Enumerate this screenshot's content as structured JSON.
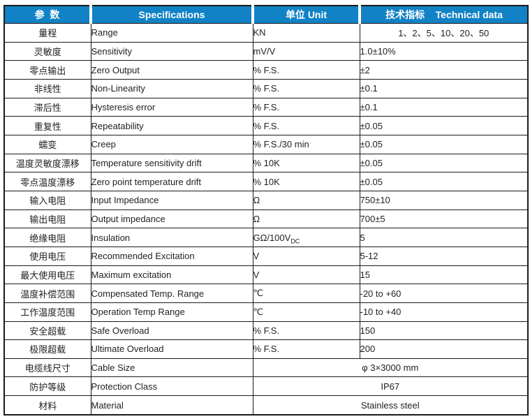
{
  "colors": {
    "header_bg": "#1182C5",
    "header_text": "#FFFFFF",
    "border": "#1A1A1A",
    "body_text": "#1F1F1F"
  },
  "table": {
    "headers": [
      "参  数",
      "Specifications",
      "单位 Unit",
      "技术指标    Technical data"
    ],
    "rows": [
      {
        "param_zh": "量程",
        "spec_en": "Range",
        "unit": "KN",
        "value": "1、2、5、10、20、50",
        "value_align": "center"
      },
      {
        "param_zh": "灵敏度",
        "spec_en": "Sensitivity",
        "unit": "mV/V",
        "value": "1.0±10%"
      },
      {
        "param_zh": "零点输出",
        "spec_en": "Zero Output",
        "unit": "% F.S.",
        "value": "±2"
      },
      {
        "param_zh": "非线性",
        "spec_en": "Non-Linearity",
        "unit": "% F.S.",
        "value": "±0.1"
      },
      {
        "param_zh": "滞后性",
        "spec_en": "Hysteresis error",
        "unit": "% F.S.",
        "value": "±0.1"
      },
      {
        "param_zh": "重复性",
        "spec_en": "Repeatability",
        "unit": "% F.S.",
        "value": "±0.05"
      },
      {
        "param_zh": "蠕变",
        "spec_en": "Creep",
        "unit": "% F.S./30 min",
        "value": "±0.05"
      },
      {
        "param_zh": "温度灵敏度漂移",
        "spec_en": "Temperature sensitivity drift",
        "unit": "% 10K",
        "value": "±0.05"
      },
      {
        "param_zh": "零点温度漂移",
        "spec_en": "Zero point temperature drift",
        "unit": "% 10K",
        "value": "±0.05"
      },
      {
        "param_zh": "输入电阻",
        "spec_en": "Input Impedance",
        "unit": "Ω",
        "value": "750±10"
      },
      {
        "param_zh": "输出电阻",
        "spec_en": "Output impedance",
        "unit": "Ω",
        "value": "700±5"
      },
      {
        "param_zh": "绝缘电阻",
        "spec_en": "Insulation",
        "unit": "GΩ/100V",
        "unit_sub": "DC",
        "value": "5"
      },
      {
        "param_zh": "使用电压",
        "spec_en": "Recommended Excitation",
        "unit": "V",
        "value": "5-12"
      },
      {
        "param_zh": "最大使用电压",
        "spec_en": "Maximum excitation",
        "unit": "V",
        "value": "15"
      },
      {
        "param_zh": "温度补偿范围",
        "spec_en": "Compensated Temp. Range",
        "unit": "℃",
        "value": "-20 to +60"
      },
      {
        "param_zh": "工作温度范围",
        "spec_en": "Operation Temp Range",
        "unit": "℃",
        "value": "-10 to +40"
      },
      {
        "param_zh": "安全超载",
        "spec_en": "Safe Overload",
        "unit": "% F.S.",
        "value": "150"
      },
      {
        "param_zh": "极限超载",
        "spec_en": "Ultimate Overload",
        "unit": "% F.S.",
        "value": "200"
      },
      {
        "param_zh": "电缆线尺寸",
        "spec_en": "Cable Size",
        "merged_value": "φ 3×3000 mm"
      },
      {
        "param_zh": "防护等级",
        "spec_en": "Protection Class",
        "merged_value": "IP67"
      },
      {
        "param_zh": "材料",
        "spec_en": "Material",
        "merged_value": "Stainless steel"
      }
    ]
  }
}
